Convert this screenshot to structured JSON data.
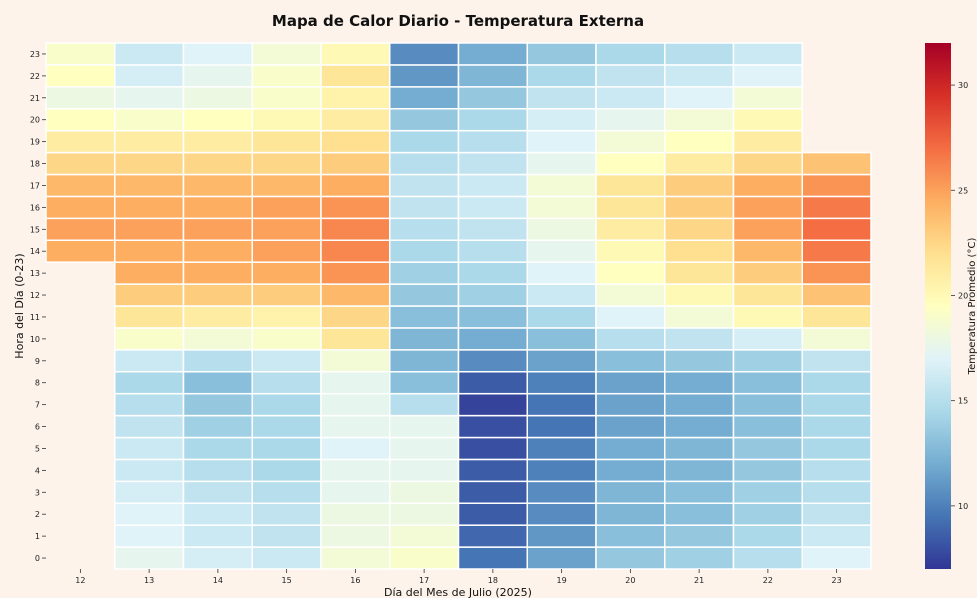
{
  "chart_data": {
    "type": "heatmap",
    "title": "Mapa de Calor Diario - Temperatura Externa",
    "xlabel": "Día del Mes de Julio (2025)",
    "ylabel": "Hora del Día (0-23)",
    "colorbar_label": "Temperatura Promedio (°C)",
    "colorbar_ticks": [
      10,
      15,
      20,
      25,
      30
    ],
    "colorbar_range": [
      7,
      32
    ],
    "colormap": "RdYlBu_r",
    "x": [
      12,
      13,
      14,
      15,
      16,
      17,
      18,
      19,
      20,
      21,
      22,
      23
    ],
    "y": [
      0,
      1,
      2,
      3,
      4,
      5,
      6,
      7,
      8,
      9,
      10,
      11,
      12,
      13,
      14,
      15,
      16,
      17,
      18,
      19,
      20,
      21,
      22,
      23
    ],
    "values": [
      [
        null,
        17.5,
        16.5,
        16.0,
        18.5,
        19.0,
        9.5,
        11.5,
        13.5,
        14.0,
        15.0,
        17.0
      ],
      [
        null,
        17.0,
        16.0,
        15.5,
        18.0,
        18.5,
        9.0,
        11.0,
        13.0,
        13.5,
        14.5,
        16.0
      ],
      [
        null,
        17.0,
        16.0,
        15.5,
        18.0,
        18.0,
        8.5,
        10.5,
        12.5,
        13.0,
        14.0,
        15.5
      ],
      [
        null,
        16.5,
        15.5,
        15.0,
        17.5,
        18.0,
        8.5,
        10.5,
        12.5,
        13.0,
        14.0,
        15.0
      ],
      [
        null,
        16.0,
        15.0,
        14.5,
        17.5,
        17.5,
        8.5,
        10.0,
        12.0,
        12.5,
        13.5,
        15.0
      ],
      [
        null,
        16.0,
        14.5,
        14.5,
        17.0,
        17.5,
        8.0,
        10.0,
        12.0,
        12.5,
        13.5,
        14.5
      ],
      [
        null,
        15.5,
        14.0,
        14.5,
        17.5,
        17.5,
        8.0,
        9.5,
        11.5,
        12.0,
        13.0,
        14.5
      ],
      [
        null,
        15.0,
        13.5,
        14.5,
        17.5,
        15.0,
        7.5,
        9.5,
        11.5,
        12.0,
        13.0,
        14.5
      ],
      [
        null,
        14.5,
        13.0,
        15.0,
        17.5,
        13.0,
        8.5,
        10.0,
        11.5,
        12.0,
        13.0,
        14.5
      ],
      [
        null,
        16.0,
        15.0,
        16.0,
        18.5,
        12.5,
        10.5,
        11.5,
        13.0,
        13.5,
        14.0,
        15.5
      ],
      [
        null,
        19.0,
        18.5,
        19.0,
        21.5,
        12.5,
        12.0,
        13.0,
        15.0,
        15.5,
        16.5,
        18.5
      ],
      [
        null,
        21.5,
        21.0,
        20.5,
        22.5,
        13.0,
        13.0,
        14.5,
        17.0,
        18.5,
        20.0,
        21.5
      ],
      [
        null,
        23.0,
        23.0,
        23.0,
        24.0,
        13.5,
        14.0,
        16.0,
        18.5,
        20.0,
        21.5,
        23.5
      ],
      [
        null,
        24.5,
        24.5,
        24.5,
        25.5,
        14.0,
        14.5,
        17.0,
        19.5,
        21.5,
        23.0,
        25.5
      ],
      [
        24.5,
        24.5,
        24.5,
        25.0,
        26.0,
        14.5,
        15.0,
        17.5,
        20.0,
        22.0,
        24.0,
        26.5
      ],
      [
        25.0,
        25.0,
        25.0,
        25.0,
        26.0,
        15.0,
        15.5,
        18.0,
        21.0,
        22.5,
        25.0,
        27.0
      ],
      [
        24.5,
        24.5,
        24.5,
        25.0,
        25.5,
        15.5,
        16.0,
        18.5,
        21.5,
        23.0,
        25.0,
        26.5
      ],
      [
        24.0,
        24.0,
        24.0,
        24.0,
        24.5,
        15.5,
        16.0,
        18.5,
        21.5,
        23.0,
        24.5,
        25.5
      ],
      [
        22.5,
        22.5,
        22.5,
        22.5,
        23.0,
        15.0,
        15.5,
        17.5,
        19.5,
        21.0,
        22.5,
        23.5
      ],
      [
        21.0,
        21.0,
        21.0,
        21.5,
        22.0,
        14.5,
        15.0,
        17.0,
        18.5,
        19.5,
        21.0,
        null
      ],
      [
        19.5,
        19.0,
        19.5,
        20.0,
        21.0,
        13.5,
        14.5,
        16.5,
        17.5,
        18.5,
        20.0,
        null
      ],
      [
        18.0,
        17.5,
        18.0,
        19.0,
        20.5,
        12.0,
        13.5,
        15.5,
        16.0,
        17.0,
        18.5,
        null
      ],
      [
        19.5,
        16.5,
        17.5,
        19.0,
        21.5,
        11.0,
        12.5,
        14.5,
        15.5,
        16.0,
        17.0,
        null
      ],
      [
        19.0,
        16.0,
        17.0,
        18.5,
        20.0,
        10.5,
        12.0,
        13.5,
        14.5,
        15.0,
        16.0,
        null
      ]
    ]
  }
}
